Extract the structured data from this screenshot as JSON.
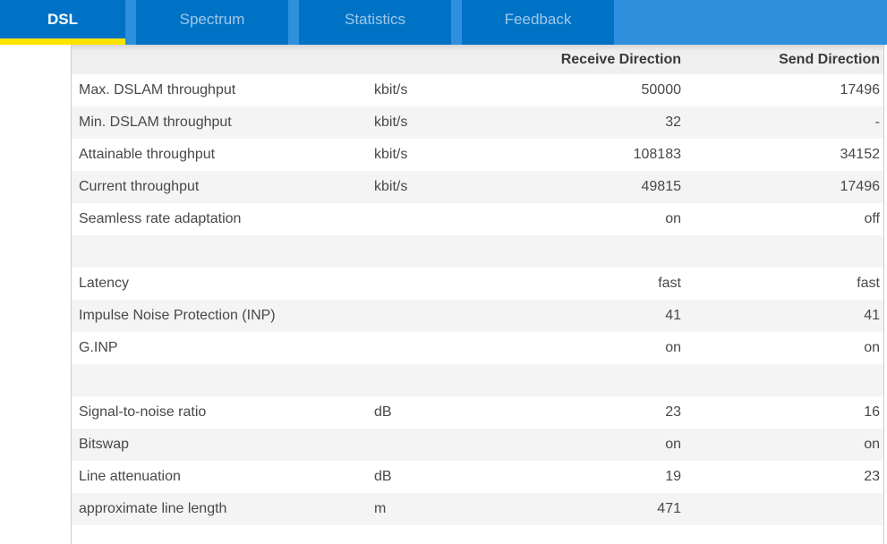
{
  "tabs": {
    "items": [
      {
        "label": "DSL",
        "active": true
      },
      {
        "label": "Spectrum",
        "active": false
      },
      {
        "label": "Statistics",
        "active": false
      },
      {
        "label": "Feedback",
        "active": false
      }
    ]
  },
  "table": {
    "columns": {
      "receive": "Receive Direction",
      "send": "Send Direction"
    },
    "rows": [
      {
        "label": "Max. DSLAM throughput",
        "unit": "kbit/s",
        "receive": "50000",
        "send": "17496"
      },
      {
        "label": "Min. DSLAM throughput",
        "unit": "kbit/s",
        "receive": "32",
        "send": "-"
      },
      {
        "label": "Attainable throughput",
        "unit": "kbit/s",
        "receive": "108183",
        "send": "34152"
      },
      {
        "label": "Current throughput",
        "unit": "kbit/s",
        "receive": "49815",
        "send": "17496"
      },
      {
        "label": "Seamless rate adaptation",
        "unit": "",
        "receive": "on",
        "send": "off"
      },
      {
        "label": "",
        "unit": "",
        "receive": "",
        "send": ""
      },
      {
        "label": "Latency",
        "unit": "",
        "receive": "fast",
        "send": "fast"
      },
      {
        "label": "Impulse Noise Protection (INP)",
        "unit": "",
        "receive": "41",
        "send": "41"
      },
      {
        "label": "G.INP",
        "unit": "",
        "receive": "on",
        "send": "on"
      },
      {
        "label": "",
        "unit": "",
        "receive": "",
        "send": ""
      },
      {
        "label": "Signal-to-noise ratio",
        "unit": "dB",
        "receive": "23",
        "send": "16"
      },
      {
        "label": "Bitswap",
        "unit": "",
        "receive": "on",
        "send": "on"
      },
      {
        "label": "Line attenuation",
        "unit": "dB",
        "receive": "19",
        "send": "23"
      },
      {
        "label": "approximate line length",
        "unit": "m",
        "receive": "471",
        "send": ""
      }
    ]
  },
  "colors": {
    "tab-bg": "#0072c6",
    "bar-bg": "#2e8fdd",
    "accent-yellow": "#fbe300",
    "inactive-tab-text": "#a0c8e8",
    "even-row": "#f4f4f4"
  }
}
